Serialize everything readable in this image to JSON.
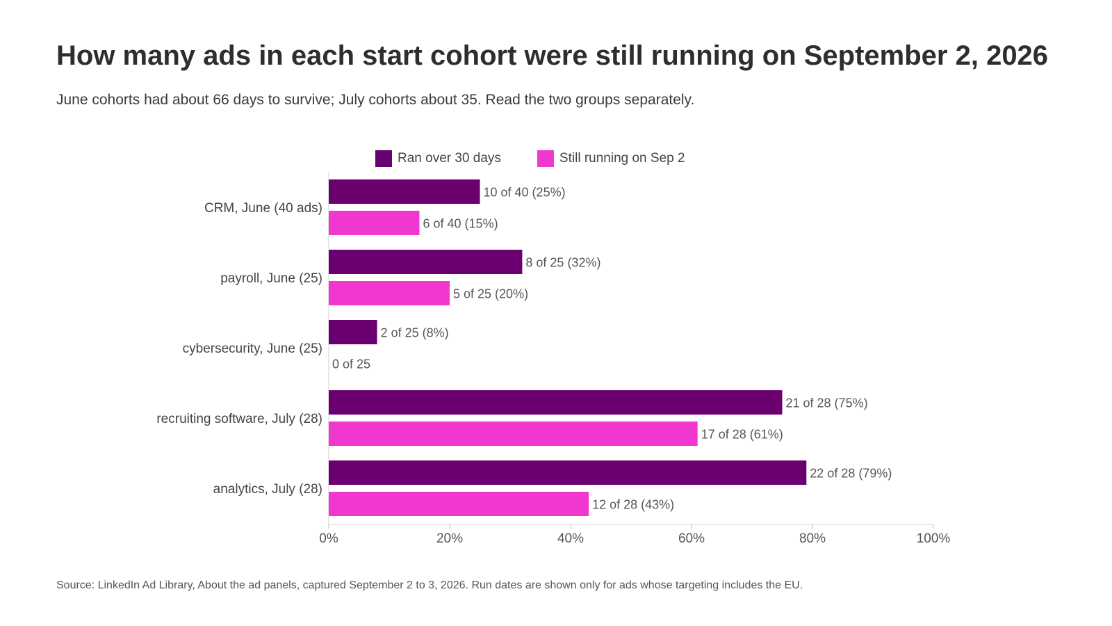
{
  "title": "How many ads in each start cohort were still running on September 2, 2026",
  "subtitle": "June cohorts had about 66 days to survive; July cohorts about 35. Read the two groups separately.",
  "source": "Source: LinkedIn Ad Library, About the ad panels, captured September 2 to 3, 2026. Run dates are shown only for ads whose targeting includes the EU.",
  "colors": {
    "ran_over_30": "#6b0070",
    "still_running": "#f038d0"
  },
  "chart_data": {
    "type": "bar",
    "orientation": "horizontal",
    "categories": [
      "CRM, June (40 ads)",
      "payroll, June (25)",
      "cybersecurity, June (25)",
      "recruiting software, July (28)",
      "analytics, July (28)"
    ],
    "series": [
      {
        "name": "Ran over 30 days",
        "color": "#6b0070",
        "values": [
          25,
          32,
          8,
          75,
          79
        ],
        "labels": [
          "10 of 40 (25%)",
          "8 of 25 (32%)",
          "2 of 25 (8%)",
          "21 of 28 (75%)",
          "22 of 28 (79%)"
        ]
      },
      {
        "name": "Still running on Sep 2",
        "color": "#f038d0",
        "values": [
          15,
          20,
          0,
          61,
          43
        ],
        "labels": [
          "6 of 40 (15%)",
          "5 of 25 (20%)",
          "0 of 25",
          "17 of 28 (61%)",
          "12 of 28 (43%)"
        ]
      }
    ],
    "xlim": [
      0,
      100
    ],
    "xticks": [
      "0%",
      "20%",
      "40%",
      "60%",
      "80%",
      "100%"
    ],
    "xtick_values": [
      0,
      20,
      40,
      60,
      80,
      100
    ],
    "legend_position": "top",
    "grid": false
  }
}
